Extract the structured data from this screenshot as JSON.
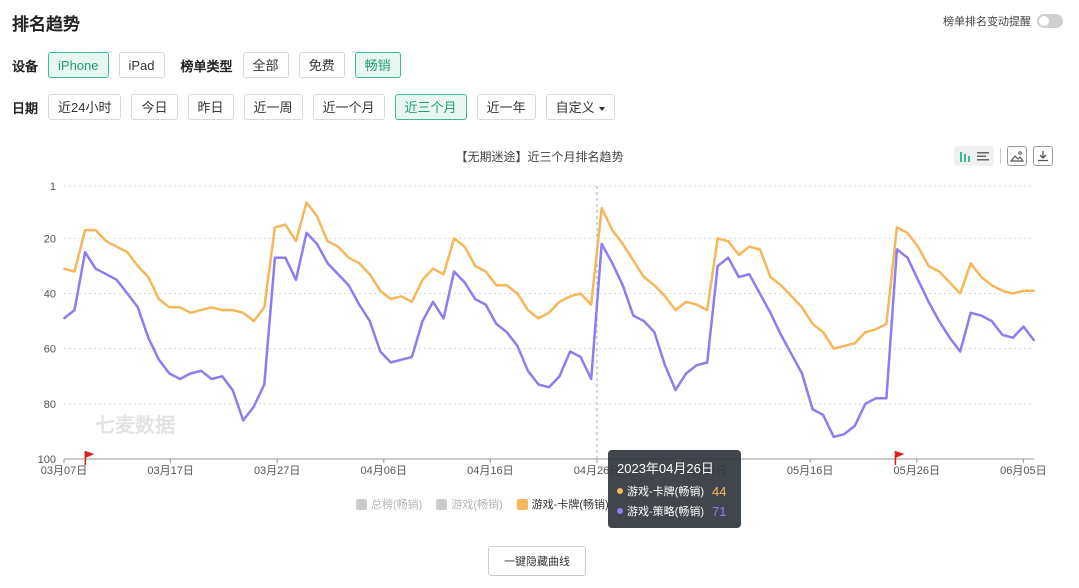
{
  "page": {
    "title": "排名趋势",
    "alert_toggle_label": "榜单排名变动提醒"
  },
  "filters": {
    "device": {
      "label": "设备",
      "options": [
        "iPhone",
        "iPad"
      ],
      "active": "iPhone"
    },
    "list_type": {
      "label": "榜单类型",
      "options": [
        "全部",
        "免费",
        "畅销"
      ],
      "active": "畅销"
    },
    "date": {
      "label": "日期",
      "options": [
        "近24小时",
        "今日",
        "昨日",
        "近一周",
        "近一个月",
        "近三个月",
        "近一年"
      ],
      "active": "近三个月",
      "custom_label": "自定义"
    }
  },
  "watermark": "七麦数据",
  "hide_all_label": "一键隐藏曲线",
  "tooltip": {
    "date": "2023年04月26日",
    "rows": [
      {
        "name": "游戏-卡牌(畅销)",
        "value": "44",
        "color": "#f5b75a"
      },
      {
        "name": "游戏-策略(畅销)",
        "value": "71",
        "color": "#8e7cf0"
      }
    ]
  },
  "colors": {
    "accent": "#3cba92",
    "card": "#f5b75a",
    "strategy": "#8e7cf0",
    "disabled": "#cccccc"
  },
  "chart_data": {
    "type": "line",
    "title": "【无期迷途】近三个月排名趋势",
    "x_axis": {
      "start": "2023-03-07",
      "end": "2023-06-06",
      "tick_labels": [
        "03月07日",
        "03月17日",
        "03月27日",
        "04月06日",
        "04月16日",
        "04月26日",
        "05月06日",
        "05月16日",
        "05月26日",
        "06月05日"
      ]
    },
    "y_axis": {
      "inverted": true,
      "range": [
        1,
        100
      ],
      "ticks": [
        1,
        20,
        40,
        60,
        80,
        100
      ]
    },
    "grid": true,
    "legend_position": "bottom",
    "legend": [
      {
        "name": "总榜(畅销)",
        "enabled": false
      },
      {
        "name": "游戏(畅销)",
        "enabled": false
      },
      {
        "name": "游戏-卡牌(畅销)",
        "enabled": true
      },
      {
        "name": "游戏-策略(畅销)",
        "enabled": true
      }
    ],
    "markers": [
      "2023-03-09",
      "2023-05-24"
    ],
    "series": [
      {
        "name": "游戏-卡牌(畅销)",
        "color": "#f5b75a",
        "values": [
          31,
          32,
          17,
          17,
          21,
          23,
          25,
          30,
          34,
          42,
          45,
          45,
          47,
          46,
          45,
          46,
          46,
          47,
          50,
          45,
          16,
          15,
          21,
          7,
          12,
          21,
          23,
          27,
          29,
          33,
          39,
          42,
          41,
          43,
          35,
          31,
          33,
          20,
          23,
          30,
          32,
          37,
          37,
          40,
          46,
          49,
          47,
          43,
          41,
          40,
          44,
          9,
          17,
          22,
          28,
          34,
          37,
          41,
          46,
          43,
          44,
          46,
          20,
          21,
          26,
          23,
          24,
          34,
          37,
          41,
          45,
          51,
          54,
          60,
          59,
          58,
          54,
          53,
          51,
          16,
          18,
          23,
          30,
          32,
          36,
          40,
          29,
          34,
          37,
          39,
          40,
          39,
          39
        ]
      },
      {
        "name": "游戏-策略(畅销)",
        "color": "#8e7cf0",
        "values": [
          49,
          46,
          25,
          31,
          33,
          35,
          40,
          45,
          56,
          64,
          69,
          71,
          69,
          68,
          71,
          70,
          75,
          86,
          81,
          73,
          27,
          27,
          35,
          18,
          22,
          29,
          33,
          37,
          44,
          50,
          61,
          65,
          64,
          63,
          50,
          43,
          49,
          32,
          36,
          42,
          44,
          51,
          54,
          59,
          68,
          73,
          74,
          70,
          61,
          63,
          71,
          22,
          29,
          37,
          48,
          50,
          54,
          66,
          75,
          69,
          66,
          65,
          30,
          27,
          34,
          33,
          40,
          47,
          55,
          62,
          69,
          82,
          84,
          92,
          91,
          88,
          80,
          78,
          78,
          24,
          27,
          35,
          43,
          50,
          56,
          61,
          47,
          48,
          50,
          55,
          56,
          52,
          57
        ]
      }
    ],
    "highlight": {
      "date": "2023-04-26"
    }
  }
}
